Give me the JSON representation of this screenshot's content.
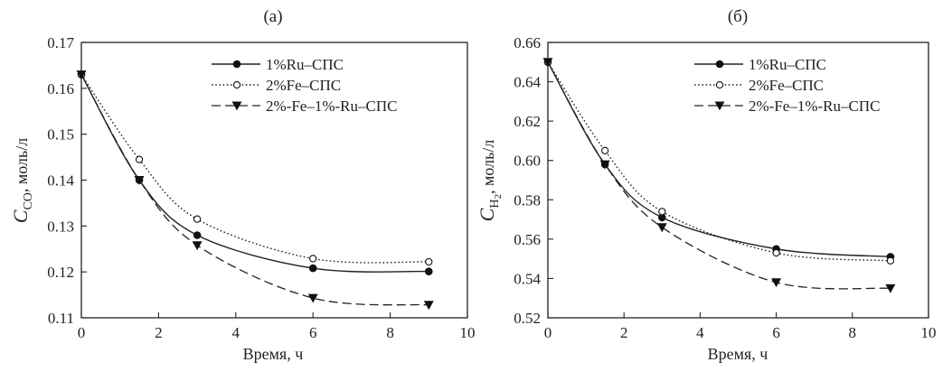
{
  "chart_data": [
    {
      "type": "line",
      "title": "(a)",
      "xlabel": "Время, ч",
      "ylabel": {
        "base": "C",
        "sub": "CO",
        "suffix": ", моль/л"
      },
      "xlim": [
        0,
        10
      ],
      "ylim": [
        0.11,
        0.17
      ],
      "xticks": [
        "0",
        "2",
        "4",
        "6",
        "8",
        "10"
      ],
      "yticks": [
        "0.11",
        "0.12",
        "0.13",
        "0.14",
        "0.15",
        "0.16",
        "0.17"
      ],
      "x": [
        0,
        1.5,
        3,
        6,
        9
      ],
      "legend_position": "top-right",
      "series": [
        {
          "name": "1%Ru–СПС",
          "marker": "filled-circle",
          "line": "solid",
          "values": [
            0.163,
            0.14,
            0.128,
            0.1208,
            0.1201
          ]
        },
        {
          "name": "2%Fe–СПС",
          "marker": "open-circle",
          "line": "dotted",
          "values": [
            0.163,
            0.1445,
            0.1315,
            0.1229,
            0.1222
          ]
        },
        {
          "name": "2%-Fe–1%-Ru–СПС",
          "marker": "filled-triangle-down",
          "line": "dashed",
          "values": [
            0.163,
            0.14,
            0.1258,
            0.1143,
            0.1128
          ]
        }
      ]
    },
    {
      "type": "line",
      "title": "(б)",
      "xlabel": "Время, ч",
      "ylabel": {
        "base": "C",
        "sub": "H",
        "sub2": "2",
        "suffix": ", моль/л"
      },
      "xlim": [
        0,
        10
      ],
      "ylim": [
        0.52,
        0.66
      ],
      "xticks": [
        "0",
        "2",
        "4",
        "6",
        "8",
        "10"
      ],
      "yticks": [
        "0.52",
        "0.54",
        "0.56",
        "0.58",
        "0.60",
        "0.62",
        "0.64",
        "0.66"
      ],
      "x": [
        0,
        1.5,
        3,
        6,
        9
      ],
      "legend_position": "top-right",
      "series": [
        {
          "name": "1%Ru–СПС",
          "marker": "filled-circle",
          "line": "solid",
          "values": [
            0.65,
            0.598,
            0.571,
            0.555,
            0.551
          ]
        },
        {
          "name": "2%Fe–СПС",
          "marker": "open-circle",
          "line": "dotted",
          "values": [
            0.65,
            0.605,
            0.574,
            0.553,
            0.549
          ]
        },
        {
          "name": "2%-Fe–1%-Ru–СПС",
          "marker": "filled-triangle-down",
          "line": "dashed",
          "values": [
            0.65,
            0.598,
            0.566,
            0.538,
            0.535
          ]
        }
      ]
    }
  ]
}
